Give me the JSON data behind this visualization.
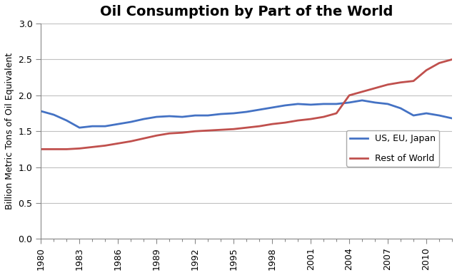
{
  "title": "Oil Consumption by Part of the World",
  "ylabel": "Billion Metric Tons of Oil Equivalent",
  "years": [
    1980,
    1981,
    1982,
    1983,
    1984,
    1985,
    1986,
    1987,
    1988,
    1989,
    1990,
    1991,
    1992,
    1993,
    1994,
    1995,
    1996,
    1997,
    1998,
    1999,
    2000,
    2001,
    2002,
    2003,
    2004,
    2005,
    2006,
    2007,
    2008,
    2009,
    2010,
    2011,
    2012
  ],
  "us_eu_japan": [
    1.78,
    1.73,
    1.65,
    1.55,
    1.57,
    1.57,
    1.6,
    1.63,
    1.67,
    1.7,
    1.71,
    1.7,
    1.72,
    1.72,
    1.74,
    1.75,
    1.77,
    1.8,
    1.83,
    1.86,
    1.88,
    1.87,
    1.88,
    1.88,
    1.9,
    1.93,
    1.9,
    1.88,
    1.82,
    1.72,
    1.75,
    1.72,
    1.68
  ],
  "rest_of_world": [
    1.25,
    1.25,
    1.25,
    1.26,
    1.28,
    1.3,
    1.33,
    1.36,
    1.4,
    1.44,
    1.47,
    1.48,
    1.5,
    1.51,
    1.52,
    1.53,
    1.55,
    1.57,
    1.6,
    1.62,
    1.65,
    1.67,
    1.7,
    1.75,
    2.0,
    2.05,
    2.1,
    2.15,
    2.18,
    2.2,
    2.35,
    2.45,
    2.5
  ],
  "us_eu_japan_color": "#4472C4",
  "rest_of_world_color": "#C0504D",
  "legend_us_eu_japan": "US, EU, Japan",
  "legend_rest_of_world": "Rest of World",
  "ylim": [
    0.0,
    3.0
  ],
  "yticks": [
    0.0,
    0.5,
    1.0,
    1.5,
    2.0,
    2.5,
    3.0
  ],
  "xtick_years": [
    1980,
    1983,
    1986,
    1989,
    1992,
    1995,
    1998,
    2001,
    2004,
    2007,
    2010
  ],
  "background_color": "#FFFFFF",
  "figure_bg": "#FFFFFF",
  "line_width": 2.0,
  "title_fontsize": 14,
  "axis_label_fontsize": 9,
  "tick_fontsize": 9,
  "grid_color": "#C0C0C0"
}
